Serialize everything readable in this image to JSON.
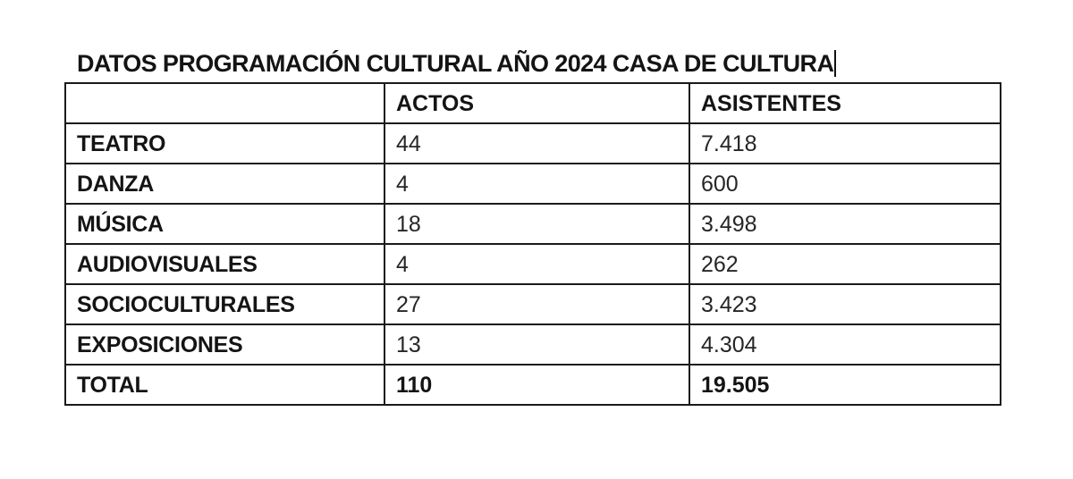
{
  "document": {
    "title": "DATOS PROGRAMACIÓN CULTURAL AÑO 2024 CASA DE CULTURA"
  },
  "table": {
    "headers": [
      "",
      "ACTOS",
      "ASISTENTES"
    ],
    "rows": [
      {
        "category": "TEATRO",
        "actos": "44",
        "asistentes": "7.418"
      },
      {
        "category": "DANZA",
        "actos": "4",
        "asistentes": "600"
      },
      {
        "category": "MÚSICA",
        "actos": "18",
        "asistentes": "3.498"
      },
      {
        "category": "AUDIOVISUALES",
        "actos": "4",
        "asistentes": "262"
      },
      {
        "category": "SOCIOCULTURALES",
        "actos": "27",
        "asistentes": "3.423"
      },
      {
        "category": "EXPOSICIONES",
        "actos": "13",
        "asistentes": "4.304"
      }
    ],
    "total": {
      "category": "TOTAL",
      "actos": "110",
      "asistentes": "19.505"
    }
  },
  "chart_data": {
    "type": "table",
    "title": "DATOS PROGRAMACIÓN CULTURAL AÑO 2024 CASA DE CULTURA",
    "columns": [
      "",
      "ACTOS",
      "ASISTENTES"
    ],
    "categories": [
      "TEATRO",
      "DANZA",
      "MÚSICA",
      "AUDIOVISUALES",
      "SOCIOCULTURALES",
      "EXPOSICIONES",
      "TOTAL"
    ],
    "series": [
      {
        "name": "ACTOS",
        "values": [
          44,
          4,
          18,
          4,
          27,
          13,
          110
        ]
      },
      {
        "name": "ASISTENTES",
        "values": [
          7418,
          600,
          3498,
          262,
          3423,
          4304,
          19505
        ]
      }
    ]
  }
}
